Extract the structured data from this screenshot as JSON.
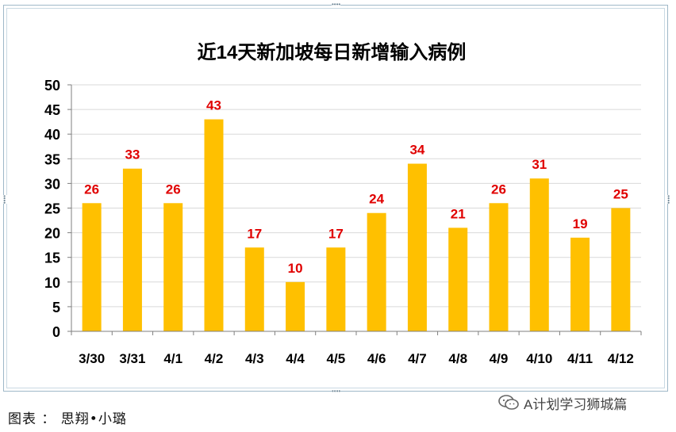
{
  "chart_data": {
    "type": "bar",
    "title": "近14天新加坡每日新增输入病例",
    "categories": [
      "3/30",
      "3/31",
      "4/1",
      "4/2",
      "4/3",
      "4/4",
      "4/5",
      "4/6",
      "4/7",
      "4/8",
      "4/9",
      "4/10",
      "4/11",
      "4/12"
    ],
    "values": [
      26,
      33,
      26,
      43,
      17,
      10,
      17,
      24,
      34,
      21,
      26,
      31,
      19,
      25
    ],
    "ylim": [
      0,
      50
    ],
    "yticks": [
      0,
      5,
      10,
      15,
      20,
      25,
      30,
      35,
      40,
      45,
      50
    ],
    "grid": true,
    "legend": "none",
    "data_labels": true
  },
  "colors": {
    "bar": "#ffc000",
    "data_label": "#e00000",
    "grid": "#d9d9d9",
    "axis": "#7f7f7f",
    "text": "#000000"
  },
  "caption": "图表 ： 思翔•小璐",
  "watermark": {
    "text": "A计划学习狮城篇",
    "icon": "wechat-icon"
  }
}
